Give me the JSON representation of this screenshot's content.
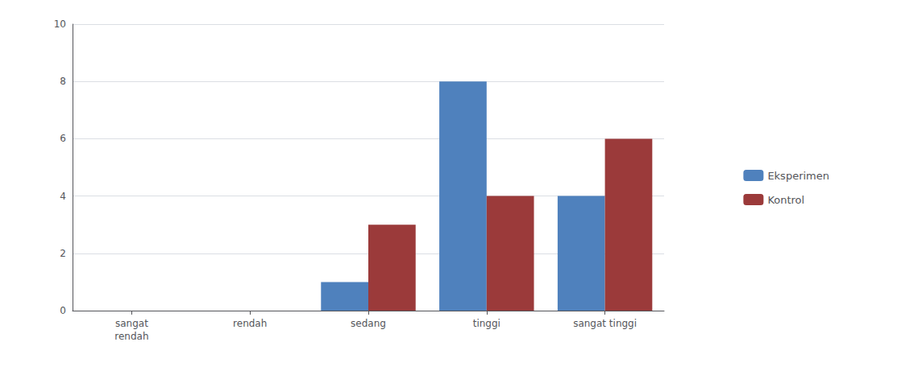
{
  "chart_data": {
    "type": "bar",
    "categories": [
      "sangat\nrendah",
      "rendah",
      "sedang",
      "tinggi",
      "sangat tinggi"
    ],
    "series": [
      {
        "name": "Eksperimen",
        "color": "#4F81BD",
        "values": [
          0,
          0,
          1,
          8,
          4
        ]
      },
      {
        "name": "Kontrol",
        "color": "#9B3A3A",
        "values": [
          0,
          0,
          3,
          4,
          6
        ]
      }
    ],
    "ylim": [
      0,
      10
    ],
    "yticks": [
      0,
      2,
      4,
      6,
      8,
      10
    ],
    "grid": true,
    "legend": "right"
  }
}
